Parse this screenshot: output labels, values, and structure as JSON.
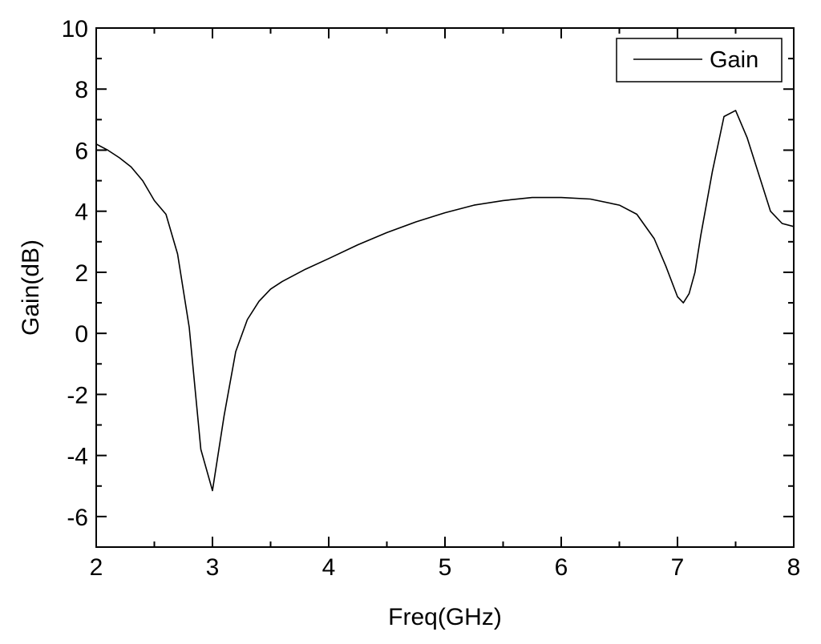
{
  "chart_data": {
    "type": "line",
    "title": "",
    "xlabel": "Freq(GHz)",
    "ylabel": "Gain(dB)",
    "xlim": [
      2,
      8
    ],
    "ylim": [
      -7,
      10
    ],
    "x_ticks": [
      2,
      3,
      4,
      5,
      6,
      7,
      8
    ],
    "x_tick_labels": [
      "2",
      "3",
      "4",
      "5",
      "6",
      "7",
      "8"
    ],
    "y_ticks": [
      -6,
      -4,
      -2,
      0,
      2,
      4,
      6,
      8,
      10
    ],
    "y_tick_labels": [
      "-6",
      "-4",
      "-2",
      "0",
      "2",
      "4",
      "6",
      "8",
      "10"
    ],
    "grid": false,
    "legend_position": "top-right",
    "series": [
      {
        "name": "Gain",
        "color": "#000000",
        "x": [
          2.0,
          2.1,
          2.2,
          2.3,
          2.4,
          2.5,
          2.6,
          2.7,
          2.8,
          2.9,
          3.0,
          3.1,
          3.2,
          3.3,
          3.4,
          3.5,
          3.6,
          3.8,
          4.0,
          4.25,
          4.5,
          4.75,
          5.0,
          5.25,
          5.5,
          5.75,
          6.0,
          6.25,
          6.5,
          6.65,
          6.8,
          6.9,
          7.0,
          7.05,
          7.1,
          7.15,
          7.2,
          7.3,
          7.4,
          7.5,
          7.6,
          7.7,
          7.8,
          7.9,
          8.0
        ],
        "y": [
          6.2,
          6.0,
          5.75,
          5.45,
          5.0,
          4.35,
          3.9,
          2.6,
          0.2,
          -3.8,
          -5.15,
          -2.7,
          -0.6,
          0.45,
          1.05,
          1.45,
          1.7,
          2.1,
          2.45,
          2.9,
          3.3,
          3.65,
          3.95,
          4.2,
          4.35,
          4.45,
          4.45,
          4.4,
          4.2,
          3.9,
          3.1,
          2.2,
          1.2,
          1.0,
          1.3,
          2.0,
          3.2,
          5.3,
          7.1,
          7.3,
          6.4,
          5.2,
          4.0,
          3.6,
          3.5
        ]
      }
    ]
  }
}
